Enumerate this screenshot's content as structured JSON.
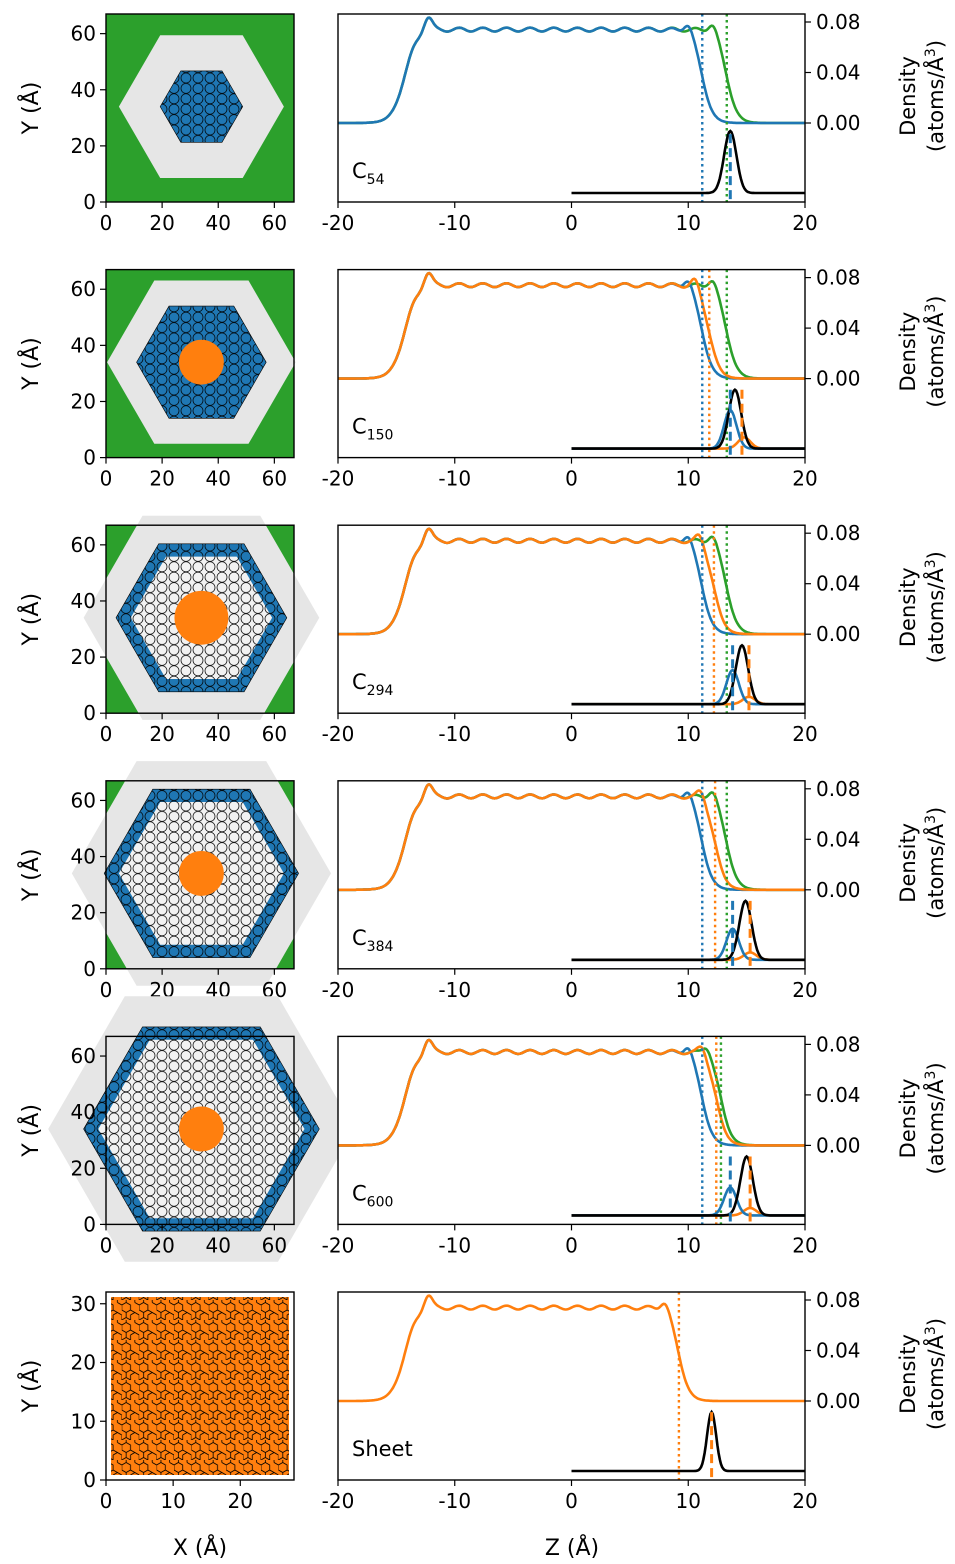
{
  "colors": {
    "green": "#2ca02c",
    "blue": "#1f77b4",
    "orange": "#ff7f0e",
    "black": "#000000",
    "lightgray": "#e6e6e6",
    "gray": "#ffffff"
  },
  "labels": {
    "map_y": "Y (Å)",
    "map_x": "X (Å)",
    "profile_x": "Z (Å)",
    "density_1": "Density",
    "density_2": "(atoms/Å",
    "density_sup": "3",
    "density_close": ")"
  },
  "chart_data": [
    {
      "type": "line",
      "panel": "C54",
      "name": "C",
      "sub": "54",
      "xlim": [
        -20,
        20
      ],
      "ylim_right": [
        0,
        0.08
      ],
      "xticks": [
        "-20",
        "-10",
        "0",
        "10",
        "20"
      ],
      "yticks": [
        "0.00",
        "0.04",
        "0.08"
      ],
      "map": {
        "xlim": [
          0,
          67
        ],
        "ylim": [
          0,
          67
        ],
        "xticks": [
          "0",
          "20",
          "40",
          "60"
        ],
        "yticks": [
          "0",
          "20",
          "40",
          "60"
        ],
        "outer_hex": 28,
        "blue_hex": 14,
        "gray_hex": 0,
        "orange_r": 0
      },
      "series_edges": {
        "green": 13.3,
        "blue": 11.2
      },
      "dotted": {
        "blue": 11.2,
        "green": 13.3
      },
      "peak": {
        "black": {
          "center": 13.6,
          "height": 1.0
        },
        "blue": {
          "center": 13.6,
          "height": 0.0
        },
        "orange": {
          "center": 14.6,
          "height": 0.0
        }
      },
      "dashed": {
        "blue": 13.6
      }
    },
    {
      "type": "line",
      "panel": "C150",
      "name": "C",
      "sub": "150",
      "xlim": [
        -20,
        20
      ],
      "xticks": [
        "-20",
        "-10",
        "0",
        "10",
        "20"
      ],
      "yticks": [
        "0.00",
        "0.04",
        "0.08"
      ],
      "map": {
        "xlim": [
          0,
          67
        ],
        "ylim": [
          0,
          67
        ],
        "xticks": [
          "0",
          "20",
          "40",
          "60"
        ],
        "yticks": [
          "0",
          "20",
          "40",
          "60"
        ],
        "outer_hex": 32,
        "blue_hex": 22,
        "gray_hex": 0,
        "orange_r": 5
      },
      "series_edges": {
        "green": 13.3,
        "blue": 11.2,
        "orange": 11.8
      },
      "dotted": {
        "blue": 11.2,
        "orange": 11.8,
        "green": 13.3
      },
      "peak": {
        "black": {
          "center": 14.0,
          "height": 0.95
        },
        "blue": {
          "center": 13.6,
          "height": 0.62
        },
        "orange": {
          "center": 14.8,
          "height": 0.18
        }
      },
      "dashed": {
        "blue": 13.6,
        "orange": 14.6
      }
    },
    {
      "type": "line",
      "panel": "C294",
      "name": "C",
      "sub": "294",
      "xlim": [
        -20,
        20
      ],
      "xticks": [
        "-20",
        "-10",
        "0",
        "10",
        "20"
      ],
      "yticks": [
        "0.00",
        "0.04",
        "0.08"
      ],
      "map": {
        "xlim": [
          0,
          67
        ],
        "ylim": [
          0,
          67
        ],
        "xticks": [
          "0",
          "20",
          "40",
          "60"
        ],
        "yticks": [
          "0",
          "20",
          "40",
          "60"
        ],
        "outer_hex": 40,
        "blue_hex": 29,
        "gray_hex": 24,
        "orange_r": 6
      },
      "series_edges": {
        "green": 13.3,
        "blue": 11.2,
        "orange": 12.2
      },
      "dotted": {
        "blue": 11.2,
        "orange": 12.2,
        "green": 13.3
      },
      "peak": {
        "black": {
          "center": 14.6,
          "height": 0.95
        },
        "blue": {
          "center": 13.8,
          "height": 0.55
        },
        "orange": {
          "center": 15.2,
          "height": 0.12
        }
      },
      "dashed": {
        "blue": 13.8,
        "orange": 15.2
      }
    },
    {
      "type": "line",
      "panel": "C384",
      "name": "C",
      "sub": "384",
      "xlim": [
        -20,
        20
      ],
      "xticks": [
        "-20",
        "-10",
        "0",
        "10",
        "20"
      ],
      "yticks": [
        "0.00",
        "0.04",
        "0.08"
      ],
      "map": {
        "xlim": [
          0,
          67
        ],
        "ylim": [
          0,
          67
        ],
        "xticks": [
          "0",
          "20",
          "40",
          "60"
        ],
        "yticks": [
          "0",
          "20",
          "40",
          "60"
        ],
        "outer_hex": 44,
        "blue_hex": 33,
        "gray_hex": 28,
        "orange_r": 5
      },
      "series_edges": {
        "green": 13.3,
        "blue": 11.2,
        "orange": 12.3
      },
      "dotted": {
        "blue": 11.2,
        "orange": 12.3,
        "green": 13.3
      },
      "peak": {
        "black": {
          "center": 14.9,
          "height": 0.95
        },
        "blue": {
          "center": 13.8,
          "height": 0.5
        },
        "orange": {
          "center": 15.3,
          "height": 0.12
        }
      },
      "dashed": {
        "blue": 13.8,
        "orange": 15.3
      }
    },
    {
      "type": "line",
      "panel": "C600",
      "name": "C",
      "sub": "600",
      "xlim": [
        -20,
        20
      ],
      "xticks": [
        "-20",
        "-10",
        "0",
        "10",
        "20"
      ],
      "yticks": [
        "0.00",
        "0.04",
        "0.08"
      ],
      "map": {
        "xlim": [
          0,
          67
        ],
        "ylim": [
          0,
          67
        ],
        "xticks": [
          "0",
          "20",
          "40",
          "60"
        ],
        "yticks": [
          "0",
          "20",
          "40",
          "60"
        ],
        "outer_hex": 52,
        "blue_hex": 40,
        "gray_hex": 35,
        "orange_r": 5
      },
      "series_edges": {
        "green": 12.8,
        "blue": 11.2,
        "orange": 12.4
      },
      "dotted": {
        "blue": 11.2,
        "orange": 12.4,
        "green": 12.8
      },
      "peak": {
        "black": {
          "center": 15.0,
          "height": 0.95
        },
        "blue": {
          "center": 13.6,
          "height": 0.45
        },
        "orange": {
          "center": 15.3,
          "height": 0.12
        }
      },
      "dashed": {
        "blue": 13.6,
        "orange": 15.3
      }
    },
    {
      "type": "line",
      "panel": "Sheet",
      "name": "Sheet",
      "sub": "",
      "xlim": [
        -20,
        20
      ],
      "xticks": [
        "-20",
        "-10",
        "0",
        "10",
        "20"
      ],
      "yticks": [
        "0.00",
        "0.04",
        "0.08"
      ],
      "map": {
        "xlim": [
          0,
          28
        ],
        "ylim": [
          0,
          32
        ],
        "xticks": [
          "0",
          "10",
          "20"
        ],
        "yticks": [
          "0",
          "10",
          "20",
          "30"
        ],
        "sheet": true
      },
      "series_edges": {
        "orange": 9.2
      },
      "dotted": {
        "orange": 9.2
      },
      "peak": {
        "black": {
          "center": 12.0,
          "height": 0.95,
          "width": 0.55
        }
      },
      "dashed": {
        "orange": 12.0
      }
    }
  ]
}
